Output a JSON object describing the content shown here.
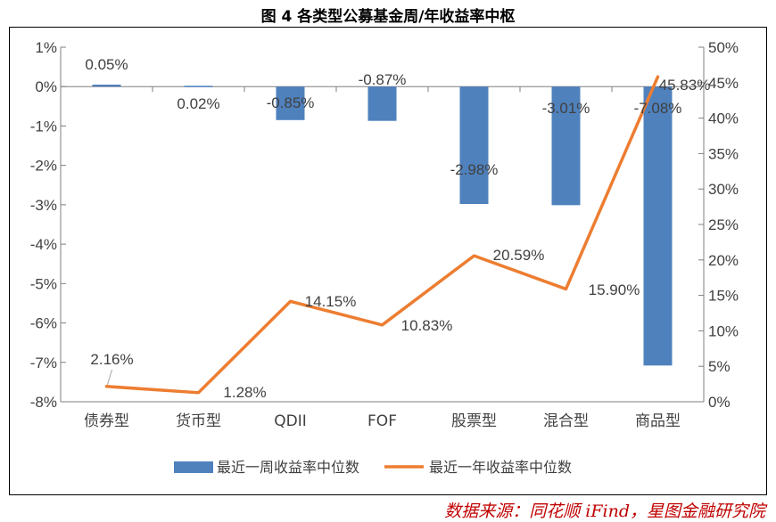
{
  "title": "图 4 各类型公募基金周/年收益率中枢",
  "source": "数据来源：同花顺 iFind，星图金融研究院",
  "colors": {
    "bar": "#4f81bd",
    "line": "#ed7d31",
    "axis": "#7f7f7f",
    "text": "#404040"
  },
  "chart_data": {
    "type": "bar",
    "categories": [
      "债券型",
      "货币型",
      "QDII",
      "FOF",
      "股票型",
      "混合型",
      "商品型"
    ],
    "series": [
      {
        "name": "最近一周收益率中位数",
        "type": "bar",
        "axis": "left",
        "values": [
          0.05,
          0.02,
          -0.85,
          -0.87,
          -2.98,
          -3.01,
          -7.08
        ],
        "labels": [
          "0.05%",
          "0.02%",
          "-0.85%",
          "-0.87%",
          "-2.98%",
          "-3.01%",
          "-7.08%"
        ]
      },
      {
        "name": "最近一年收益率中位数",
        "type": "line",
        "axis": "right",
        "values": [
          2.16,
          1.28,
          14.15,
          10.83,
          20.59,
          15.9,
          45.83
        ],
        "labels": [
          "2.16%",
          "1.28%",
          "14.15%",
          "10.83%",
          "20.59%",
          "15.90%",
          "45.83%"
        ]
      }
    ],
    "y_left": {
      "ylim": [
        -8,
        1
      ],
      "ticks": [
        1,
        0,
        -1,
        -2,
        -3,
        -4,
        -5,
        -6,
        -7,
        -8
      ],
      "tick_labels": [
        "1%",
        "0%",
        "-1%",
        "-2%",
        "-3%",
        "-4%",
        "-5%",
        "-6%",
        "-7%",
        "-8%"
      ]
    },
    "y_right": {
      "ylim": [
        0,
        50
      ],
      "ticks": [
        50,
        45,
        40,
        35,
        30,
        25,
        20,
        15,
        10,
        5,
        0
      ],
      "tick_labels": [
        "50%",
        "45%",
        "40%",
        "35%",
        "30%",
        "25%",
        "20%",
        "15%",
        "10%",
        "5%",
        "0%"
      ]
    },
    "grid": false,
    "legend": "bottom"
  }
}
